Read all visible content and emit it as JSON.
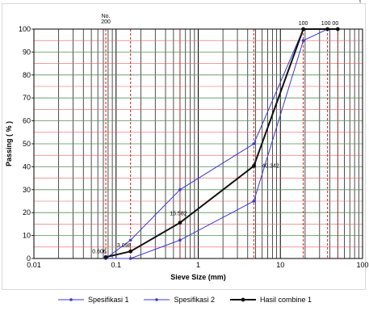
{
  "chart_data": {
    "type": "line",
    "x_scale": "log",
    "xlim": [
      0.01,
      100
    ],
    "ylim": [
      0,
      100
    ],
    "xlabel": "Sieve Size (mm)",
    "ylabel": "Passing ( % )",
    "x_tick_labels": [
      "0.01",
      "0.1",
      "1",
      "10",
      "100"
    ],
    "x_tick_values": [
      0.01,
      0.1,
      1,
      10,
      100
    ],
    "y_tick_values": [
      0,
      10,
      20,
      30,
      40,
      50,
      60,
      70,
      80,
      90,
      100
    ],
    "sieve_lines": [
      0.075,
      0.15,
      0.6,
      4.75,
      19,
      37.5,
      50
    ],
    "top_labels": [
      {
        "text": "No.",
        "x": 0.075
      },
      {
        "text": "200",
        "x": 0.075
      },
      {
        "text": "100",
        "x": 19
      },
      {
        "text": "100 00",
        "x": 40
      }
    ],
    "grid": true,
    "legend_position": "bottom",
    "series": [
      {
        "name": "Spesifikasi 1",
        "color": "#3a3ad6",
        "x": [
          0.075,
          0.15,
          0.6,
          4.75,
          19,
          37.5,
          50
        ],
        "y": [
          0,
          8,
          30,
          50,
          100,
          100,
          100
        ]
      },
      {
        "name": "Spesifikasi 2",
        "color": "#3a3ad6",
        "x": [
          0.075,
          0.15,
          0.6,
          4.75,
          19,
          37.5,
          50
        ],
        "y": [
          0,
          0,
          8,
          25,
          95,
          100,
          100
        ]
      },
      {
        "name": "Hasil combine 1",
        "color": "#111111",
        "x": [
          0.075,
          0.15,
          0.6,
          4.75,
          19,
          37.5,
          50
        ],
        "y": [
          0.6,
          3.1,
          15.6,
          40.3,
          100,
          100,
          100
        ]
      }
    ],
    "data_labels": [
      {
        "text": "0.606",
        "x": 0.075,
        "y": 0.6
      },
      {
        "text": "3.098",
        "x": 0.15,
        "y": 3.1
      },
      {
        "text": "15.582",
        "x": 0.6,
        "y": 15.6
      },
      {
        "text": "40.342",
        "x": 4.75,
        "y": 40.3
      }
    ]
  },
  "corner_mark": "1"
}
